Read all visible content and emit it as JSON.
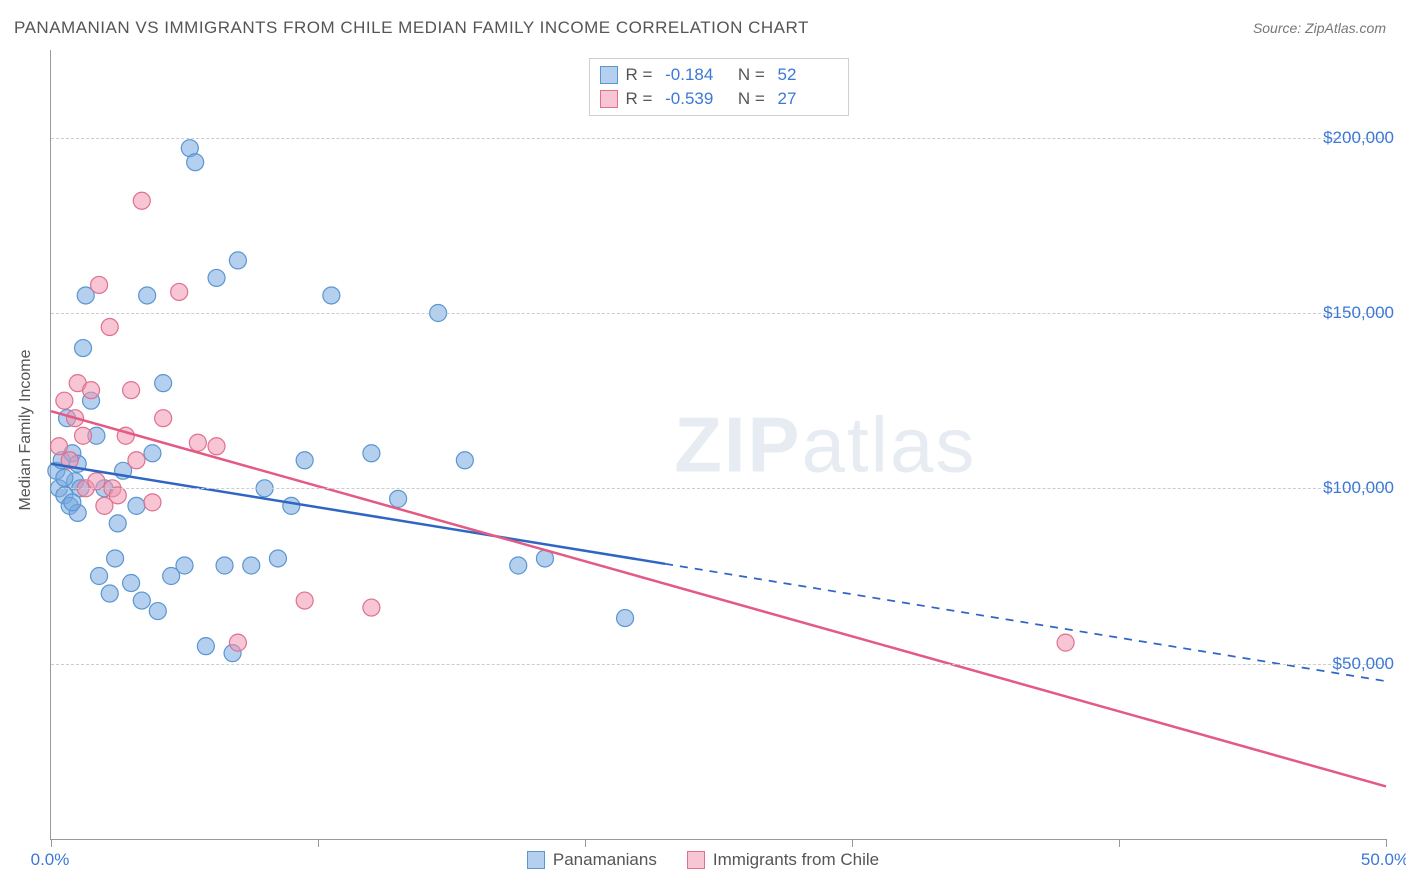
{
  "title": "PANAMANIAN VS IMMIGRANTS FROM CHILE MEDIAN FAMILY INCOME CORRELATION CHART",
  "source": "Source: ZipAtlas.com",
  "watermark": {
    "bold": "ZIP",
    "rest": "atlas"
  },
  "ylabel": "Median Family Income",
  "series": {
    "a": {
      "name": "Panamanians",
      "fill": "rgba(120,170,225,0.55)",
      "stroke": "#5a96d0",
      "line_stroke": "#2f66c4",
      "R": "-0.184",
      "N": "52",
      "line": {
        "x0": 0,
        "y0": 107000,
        "x1": 50,
        "y1": 45000,
        "dash_from_x": 23
      },
      "points": [
        [
          0.2,
          105000
        ],
        [
          0.3,
          100000
        ],
        [
          0.4,
          108000
        ],
        [
          0.5,
          98000
        ],
        [
          0.6,
          120000
        ],
        [
          0.7,
          95000
        ],
        [
          0.8,
          110000
        ],
        [
          0.9,
          102000
        ],
        [
          1.0,
          93000
        ],
        [
          1.1,
          100000
        ],
        [
          1.2,
          140000
        ],
        [
          1.3,
          155000
        ],
        [
          1.5,
          125000
        ],
        [
          1.7,
          115000
        ],
        [
          1.8,
          75000
        ],
        [
          2.0,
          100000
        ],
        [
          2.2,
          70000
        ],
        [
          2.4,
          80000
        ],
        [
          2.5,
          90000
        ],
        [
          2.7,
          105000
        ],
        [
          3.0,
          73000
        ],
        [
          3.2,
          95000
        ],
        [
          3.4,
          68000
        ],
        [
          3.6,
          155000
        ],
        [
          3.8,
          110000
        ],
        [
          4.0,
          65000
        ],
        [
          4.2,
          130000
        ],
        [
          4.5,
          75000
        ],
        [
          5.0,
          78000
        ],
        [
          5.2,
          197000
        ],
        [
          5.4,
          193000
        ],
        [
          5.8,
          55000
        ],
        [
          6.2,
          160000
        ],
        [
          6.5,
          78000
        ],
        [
          6.8,
          53000
        ],
        [
          7.0,
          165000
        ],
        [
          7.5,
          78000
        ],
        [
          8.0,
          100000
        ],
        [
          8.5,
          80000
        ],
        [
          9.0,
          95000
        ],
        [
          9.5,
          108000
        ],
        [
          10.5,
          155000
        ],
        [
          12.0,
          110000
        ],
        [
          13.0,
          97000
        ],
        [
          14.5,
          150000
        ],
        [
          15.5,
          108000
        ],
        [
          17.5,
          78000
        ],
        [
          18.5,
          80000
        ],
        [
          21.5,
          63000
        ],
        [
          0.5,
          103000
        ],
        [
          1.0,
          107000
        ],
        [
          0.8,
          96000
        ]
      ]
    },
    "b": {
      "name": "Immigrants from Chile",
      "fill": "rgba(240,150,175,0.55)",
      "stroke": "#e0708f",
      "line_stroke": "#e35a84",
      "R": "-0.539",
      "N": "27",
      "line": {
        "x0": 0,
        "y0": 122000,
        "x1": 50,
        "y1": 15000
      },
      "points": [
        [
          0.3,
          112000
        ],
        [
          0.5,
          125000
        ],
        [
          0.7,
          108000
        ],
        [
          0.9,
          120000
        ],
        [
          1.0,
          130000
        ],
        [
          1.2,
          115000
        ],
        [
          1.3,
          100000
        ],
        [
          1.5,
          128000
        ],
        [
          1.7,
          102000
        ],
        [
          1.8,
          158000
        ],
        [
          2.0,
          95000
        ],
        [
          2.2,
          146000
        ],
        [
          2.3,
          100000
        ],
        [
          2.5,
          98000
        ],
        [
          2.8,
          115000
        ],
        [
          3.0,
          128000
        ],
        [
          3.2,
          108000
        ],
        [
          3.4,
          182000
        ],
        [
          3.8,
          96000
        ],
        [
          4.2,
          120000
        ],
        [
          4.8,
          156000
        ],
        [
          5.5,
          113000
        ],
        [
          6.2,
          112000
        ],
        [
          7.0,
          56000
        ],
        [
          9.5,
          68000
        ],
        [
          12.0,
          66000
        ],
        [
          38.0,
          56000
        ]
      ]
    }
  },
  "chart": {
    "xlim": [
      0,
      50
    ],
    "ylim": [
      0,
      225000
    ],
    "y_gridlines": [
      50000,
      100000,
      150000,
      200000
    ],
    "y_labels": [
      {
        "value": 50000,
        "text": "$50,000"
      },
      {
        "value": 100000,
        "text": "$100,000"
      },
      {
        "value": 150000,
        "text": "$150,000"
      },
      {
        "value": 200000,
        "text": "$200,000"
      }
    ],
    "x_ticks": [
      0,
      10,
      20,
      30,
      40,
      50
    ],
    "x_labels": [
      {
        "value": 0,
        "text": "0.0%"
      },
      {
        "value": 50,
        "text": "50.0%"
      }
    ],
    "marker_radius": 8.5,
    "marker_stroke_width": 1.2,
    "line_width": 2.5,
    "grid_color": "#cccccc",
    "axis_color": "#999999",
    "background": "#ffffff",
    "value_color": "#3b78d8",
    "text_color": "#555555"
  }
}
